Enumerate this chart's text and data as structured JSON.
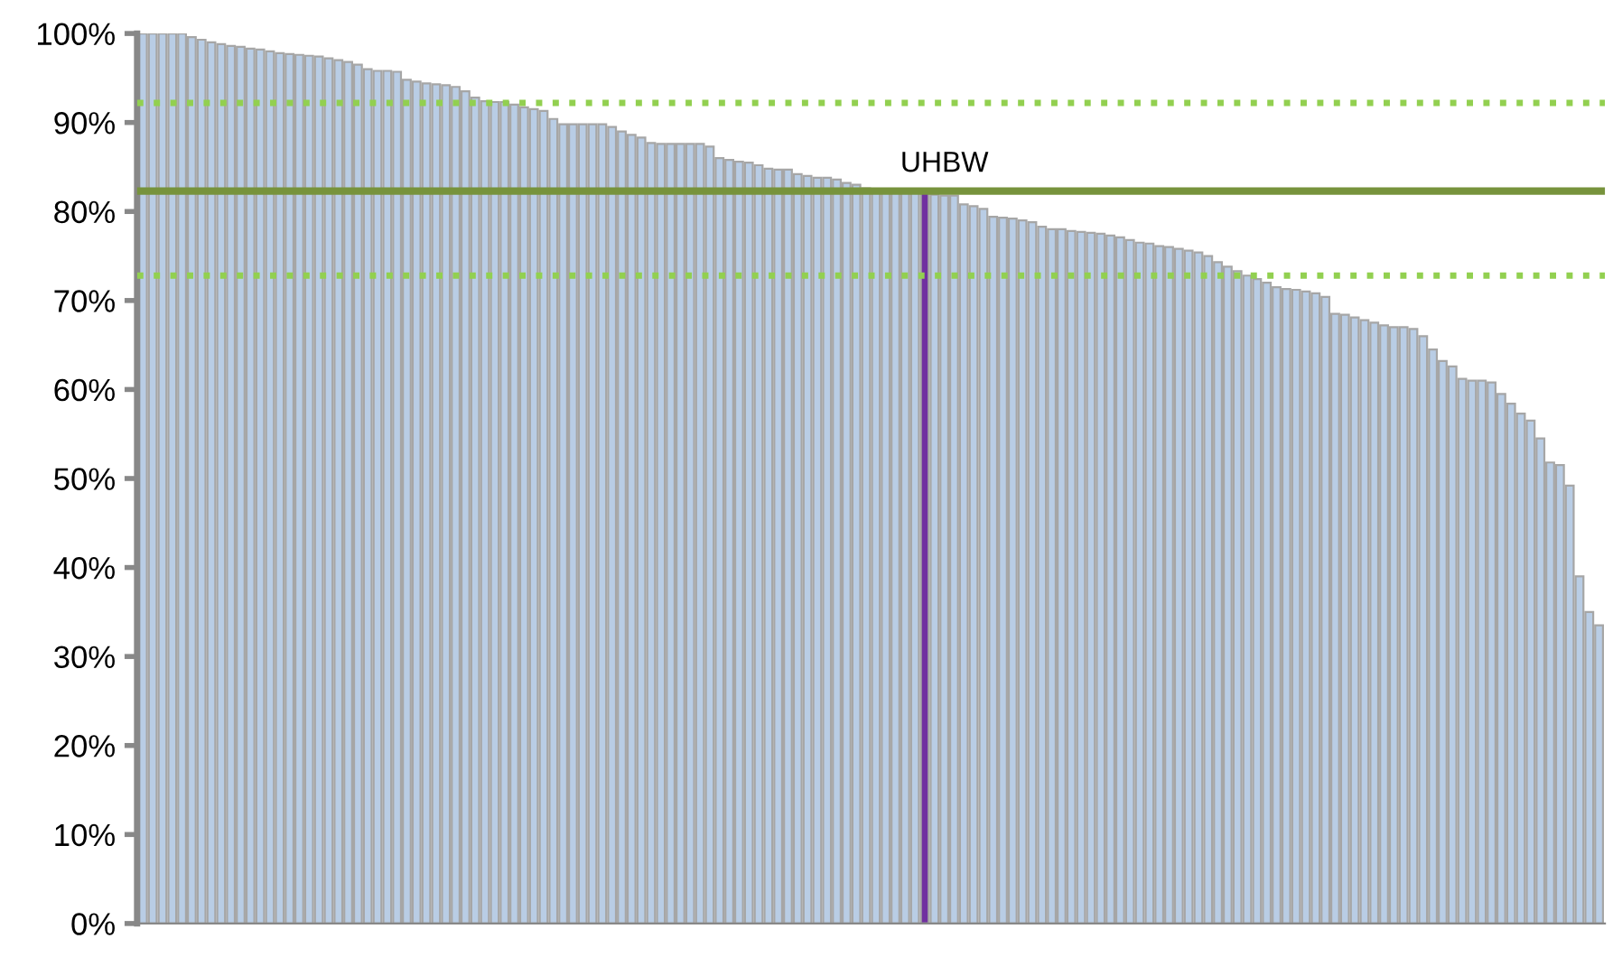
{
  "chart_data": {
    "type": "bar",
    "categories": [
      null,
      null,
      null,
      null,
      null,
      null,
      null,
      null,
      null,
      null,
      null,
      null,
      null,
      null,
      null,
      null,
      null,
      null,
      null,
      null,
      null,
      null,
      null,
      null,
      null,
      null,
      null,
      null,
      null,
      null,
      null,
      null,
      null,
      null,
      null,
      null,
      null,
      null,
      null,
      null,
      null,
      null,
      null,
      null,
      null,
      null,
      null,
      null,
      null,
      null,
      null,
      null,
      null,
      null,
      null,
      null,
      null,
      null,
      null,
      null,
      null,
      null,
      null,
      null,
      null,
      null,
      null,
      null,
      null,
      null,
      null,
      null,
      null,
      null,
      null,
      null,
      null,
      null,
      null,
      null,
      null,
      null,
      null,
      null,
      null,
      null,
      null,
      null,
      null,
      null,
      null,
      null,
      null,
      null,
      null,
      null,
      null,
      null,
      null,
      null,
      null,
      null,
      null,
      null,
      null,
      null,
      null,
      null,
      null,
      null,
      null,
      null,
      null,
      null,
      null,
      null,
      null,
      null,
      null,
      null,
      null,
      null,
      null,
      null,
      null,
      null,
      null,
      null,
      null,
      null,
      null,
      null,
      null,
      null,
      null,
      null,
      null,
      null,
      null,
      null,
      null,
      null,
      null,
      null,
      null,
      null,
      null,
      null,
      null,
      null
    ],
    "values": [
      100,
      100,
      100,
      100,
      100,
      99.6,
      99.3,
      99,
      98.8,
      98.6,
      98.5,
      98.3,
      98.2,
      98,
      97.8,
      97.7,
      97.6,
      97.5,
      97.4,
      97.2,
      97,
      96.8,
      96.5,
      96,
      95.8,
      95.8,
      95.7,
      94.8,
      94.6,
      94.4,
      94.3,
      94.2,
      94,
      93.5,
      92.8,
      92.4,
      92.3,
      92.3,
      92,
      91.7,
      91.5,
      91.3,
      90.4,
      89.8,
      89.8,
      89.8,
      89.8,
      89.8,
      89.5,
      89,
      88.6,
      88.3,
      87.7,
      87.6,
      87.6,
      87.6,
      87.6,
      87.6,
      87.3,
      86,
      85.8,
      85.6,
      85.5,
      85.2,
      84.8,
      84.7,
      84.7,
      84.2,
      84,
      83.8,
      83.8,
      83.6,
      83.2,
      83,
      82.6,
      82.5,
      82.5,
      82.4,
      82.3,
      82.2,
      82.2,
      81.9,
      81.8,
      81.8,
      80.8,
      80.6,
      80.3,
      79.4,
      79.3,
      79.2,
      79,
      78.8,
      78.3,
      78,
      78,
      77.8,
      77.7,
      77.6,
      77.5,
      77.3,
      77.1,
      76.8,
      76.5,
      76.4,
      76.1,
      76,
      75.8,
      75.6,
      75.4,
      75,
      74.3,
      73.8,
      73.3,
      72.8,
      72.4,
      72,
      71.5,
      71.3,
      71.2,
      71,
      70.8,
      70.4,
      68.5,
      68.4,
      68.1,
      67.8,
      67.5,
      67.2,
      67,
      67,
      66.8,
      66,
      64.5,
      63.2,
      62.6,
      61.2,
      61,
      61,
      60.8,
      59.5,
      58.4,
      57.3,
      56.5,
      54.5,
      51.8,
      51.5,
      49.2,
      39,
      35,
      33.5
    ],
    "colors": [
      "#b9cde5",
      "#b9cde5",
      "#b9cde5",
      "#b9cde5",
      "#b9cde5",
      "#b9cde5",
      "#b9cde5",
      "#b9cde5",
      "#b9cde5",
      "#b9cde5",
      "#b9cde5",
      "#b9cde5",
      "#b9cde5",
      "#b9cde5",
      "#b9cde5",
      "#b9cde5",
      "#b9cde5",
      "#b9cde5",
      "#b9cde5",
      "#b9cde5",
      "#b9cde5",
      "#b9cde5",
      "#b9cde5",
      "#b9cde5",
      "#b9cde5",
      "#b9cde5",
      "#b9cde5",
      "#b9cde5",
      "#b9cde5",
      "#b9cde5",
      "#b9cde5",
      "#b9cde5",
      "#b9cde5",
      "#b9cde5",
      "#b9cde5",
      "#b9cde5",
      "#b9cde5",
      "#b9cde5",
      "#b9cde5",
      "#b9cde5",
      "#b9cde5",
      "#b9cde5",
      "#b9cde5",
      "#b9cde5",
      "#b9cde5",
      "#b9cde5",
      "#b9cde5",
      "#b9cde5",
      "#b9cde5",
      "#b9cde5",
      "#b9cde5",
      "#b9cde5",
      "#b9cde5",
      "#b9cde5",
      "#b9cde5",
      "#b9cde5",
      "#b9cde5",
      "#b9cde5",
      "#b9cde5",
      "#b9cde5",
      "#b9cde5",
      "#b9cde5",
      "#b9cde5",
      "#b9cde5",
      "#b9cde5",
      "#b9cde5",
      "#b9cde5",
      "#b9cde5",
      "#b9cde5",
      "#b9cde5",
      "#b9cde5",
      "#b9cde5",
      "#b9cde5",
      "#b9cde5",
      "#b9cde5",
      "#b9cde5",
      "#b9cde5",
      "#b9cde5",
      "#b9cde5",
      "#b9cde5",
      "#7030a0",
      "#b9cde5",
      "#b9cde5",
      "#b9cde5",
      "#b9cde5",
      "#b9cde5",
      "#b9cde5",
      "#b9cde5",
      "#b9cde5",
      "#b9cde5",
      "#b9cde5",
      "#b9cde5",
      "#b9cde5",
      "#b9cde5",
      "#b9cde5",
      "#b9cde5",
      "#b9cde5",
      "#b9cde5",
      "#b9cde5",
      "#b9cde5",
      "#b9cde5",
      "#b9cde5",
      "#b9cde5",
      "#b9cde5",
      "#b9cde5",
      "#b9cde5",
      "#b9cde5",
      "#b9cde5",
      "#b9cde5",
      "#b9cde5",
      "#b9cde5",
      "#b9cde5",
      "#b9cde5",
      "#b9cde5",
      "#b9cde5",
      "#b9cde5",
      "#b9cde5",
      "#b9cde5",
      "#b9cde5",
      "#b9cde5",
      "#b9cde5",
      "#b9cde5",
      "#b9cde5",
      "#b9cde5",
      "#b9cde5",
      "#b9cde5",
      "#b9cde5",
      "#b9cde5",
      "#b9cde5",
      "#b9cde5",
      "#b9cde5",
      "#b9cde5",
      "#b9cde5",
      "#b9cde5",
      "#b9cde5",
      "#b9cde5",
      "#b9cde5",
      "#b9cde5",
      "#b9cde5",
      "#b9cde5",
      "#b9cde5",
      "#b9cde5",
      "#b9cde5",
      "#b9cde5",
      "#b9cde5",
      "#b9cde5",
      "#b9cde5",
      "#b9cde5",
      "#b9cde5",
      "#b9cde5"
    ],
    "ylim": [
      0,
      100
    ],
    "yticks": [
      {
        "value": 0,
        "label": "0%"
      },
      {
        "value": 10,
        "label": "10%"
      },
      {
        "value": 20,
        "label": "20%"
      },
      {
        "value": 30,
        "label": "30%"
      },
      {
        "value": 40,
        "label": "40%"
      },
      {
        "value": 50,
        "label": "50%"
      },
      {
        "value": 60,
        "label": "60%"
      },
      {
        "value": 70,
        "label": "70%"
      },
      {
        "value": 80,
        "label": "80%"
      },
      {
        "value": 90,
        "label": "90%"
      },
      {
        "value": 100,
        "label": "100%"
      }
    ],
    "ref_lines": [
      {
        "axis": "y",
        "value": 82.3,
        "label": "UHBW",
        "color": "#77933c",
        "line_style": "solid"
      },
      {
        "axis": "y",
        "value": 92.2,
        "color": "#92d050",
        "line_style": "dotted"
      },
      {
        "axis": "y",
        "value": 72.8,
        "color": "#92d050",
        "line_style": "dotted"
      }
    ],
    "grid": false,
    "tick_labels": "y"
  }
}
